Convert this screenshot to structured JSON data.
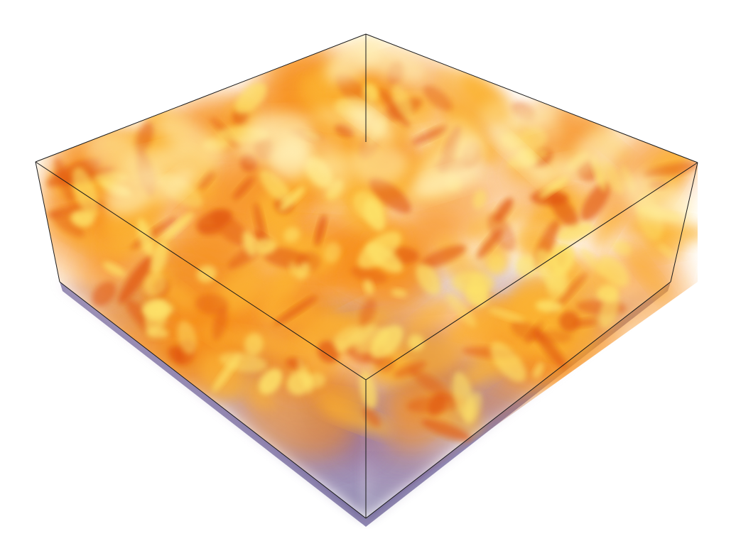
{
  "scene": {
    "subject": "volume-rendering",
    "background_color": "#ffffff",
    "outline_color": "#1a1a1a",
    "palette": {
      "floor_dark": "#2e2468",
      "floor_mid": "#7a5a9a",
      "floor_light": "#c9a9c4",
      "flame_deep": "#e0520c",
      "flame_orange": "#f7901e",
      "flame_amber": "#fbb232",
      "flame_yellow": "#fde36a",
      "flame_pale": "#fff1b8",
      "smoke_violet": "#8a5c86"
    }
  }
}
